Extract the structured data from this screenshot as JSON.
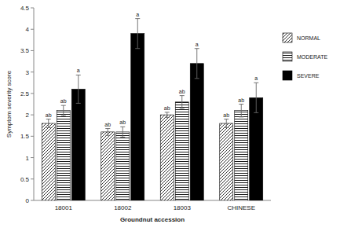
{
  "chart_data": {
    "type": "bar",
    "x_label": "Groundnut accession",
    "y_label": "Symptom severity score",
    "categories": [
      "18001",
      "18002",
      "18003",
      "CHINESE"
    ],
    "series": [
      {
        "name": "NORMAL",
        "color": "#000000",
        "values": [
          1.8,
          1.6,
          2.0,
          1.8
        ],
        "errors": [
          0.1,
          0.08,
          0.06,
          0.1
        ],
        "letters": [
          "ab",
          "ab",
          "ab",
          "ab"
        ]
      },
      {
        "name": "MODERATE",
        "color": "#000000",
        "values": [
          2.1,
          1.6,
          2.3,
          2.1
        ],
        "errors": [
          0.12,
          0.12,
          0.15,
          0.15
        ],
        "letters": [
          "ab",
          "ab",
          "ab",
          "ab"
        ]
      },
      {
        "name": "SEVERE",
        "color": "#000000",
        "values": [
          2.6,
          3.9,
          3.2,
          2.4
        ],
        "errors": [
          0.33,
          0.35,
          0.35,
          0.35
        ],
        "letters": [
          "a",
          "a",
          "a",
          "a"
        ]
      }
    ],
    "ylim": [
      0,
      4.5
    ],
    "yticks": [
      0,
      0.5,
      1,
      1.5,
      2,
      2.5,
      3,
      3.5,
      4,
      4.5
    ],
    "grid": false,
    "legend": "right"
  }
}
